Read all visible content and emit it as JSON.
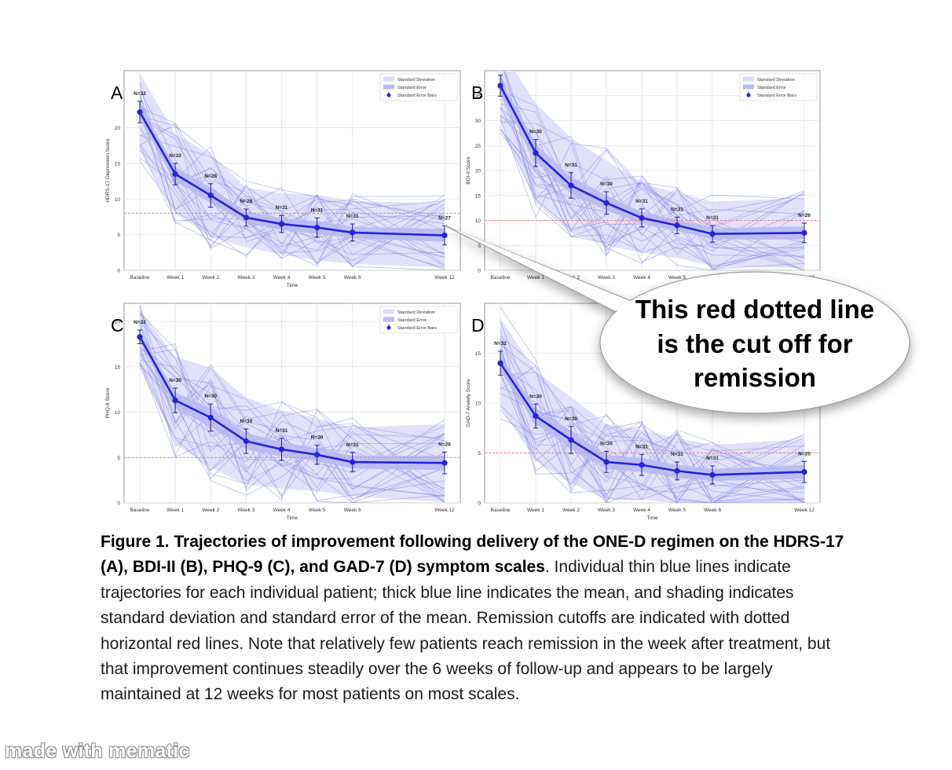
{
  "chart_data": [
    {
      "type": "line",
      "panel_label": "A",
      "ylabel": "HDRS-17 Depression Score",
      "xlabel": "Time",
      "x_ticks": [
        "Baseline",
        "Week 1",
        "Week 2",
        "Week 3",
        "Week 4",
        "Week 5",
        "Week 6",
        "Week 12"
      ],
      "ylim": [
        0,
        28
      ],
      "y_ticks": [
        0,
        5,
        10,
        15,
        20
      ],
      "grid": true,
      "legend": {
        "position": "top-right",
        "entries": [
          "Standard Deviation",
          "Standard Error",
          "Standard Error Bars"
        ]
      },
      "remission_cutoff": 8,
      "mean": [
        22.2,
        13.5,
        10.5,
        7.4,
        6.5,
        6.0,
        5.3,
        4.9
      ],
      "se": [
        1.0,
        1.0,
        1.1,
        0.8,
        0.8,
        0.9,
        0.8,
        0.9
      ],
      "sd": [
        5.5,
        5.6,
        5.8,
        4.2,
        4.3,
        4.6,
        4.4,
        4.5
      ],
      "n_labels": [
        "N=32",
        "N=32",
        "N=28",
        "N=28",
        "N=31",
        "N=31",
        "N=31",
        "N=27"
      ]
    },
    {
      "type": "line",
      "panel_label": "B",
      "ylabel": "BDI-II Score",
      "xlabel": "",
      "x_ticks": [
        "Baseline",
        "Week 1",
        "Week 2",
        "Week 3",
        "Week 4",
        "Week 5",
        "Week 6",
        "Week 12"
      ],
      "ylim": [
        0,
        40
      ],
      "y_ticks": [
        0,
        5,
        10,
        15,
        20,
        25,
        30,
        35
      ],
      "grid": true,
      "legend": {
        "position": "top-right",
        "entries": [
          "Standard Deviation",
          "Standard Error",
          "Standard Error Bars"
        ]
      },
      "remission_cutoff": 10,
      "mean": [
        37.0,
        23.5,
        17.0,
        13.5,
        10.5,
        9.0,
        7.3,
        7.5
      ],
      "se": [
        1.4,
        1.8,
        1.7,
        1.5,
        1.2,
        1.1,
        1.1,
        1.3
      ],
      "sd": [
        7.5,
        10.0,
        9.5,
        8.5,
        7.0,
        6.5,
        6.5,
        7.0
      ],
      "n_labels": [
        "N=32",
        "N=30",
        "N=31",
        "N=30",
        "N=31",
        "N=31",
        "N=31",
        "N=26"
      ]
    },
    {
      "type": "line",
      "panel_label": "C",
      "ylabel": "PHQ-9 Score",
      "xlabel": "Time",
      "x_ticks": [
        "Baseline",
        "Week 1",
        "Week 2",
        "Week 3",
        "Week 4",
        "Week 5",
        "Week 6",
        "Week 12"
      ],
      "ylim": [
        0,
        22
      ],
      "y_ticks": [
        0,
        5,
        10,
        15,
        20
      ],
      "grid": true,
      "legend": {
        "position": "top-right",
        "entries": [
          "Standard Deviation",
          "Standard Error",
          "Standard Error Bars"
        ]
      },
      "remission_cutoff": 5,
      "mean": [
        18.3,
        11.3,
        9.4,
        6.8,
        5.9,
        5.3,
        4.5,
        4.4
      ],
      "se": [
        0.5,
        0.9,
        1.0,
        0.9,
        0.8,
        0.7,
        0.7,
        0.8
      ],
      "sd": [
        3.0,
        4.8,
        5.5,
        4.8,
        4.3,
        4.0,
        3.8,
        4.3
      ],
      "n_labels": [
        "N=32",
        "N=30",
        "N=30",
        "N=30",
        "N=31",
        "N=30",
        "N=31",
        "N=26"
      ]
    },
    {
      "type": "line",
      "panel_label": "D",
      "ylabel": "GAD-7 Anxiety Score",
      "xlabel": "Time",
      "x_ticks": [
        "Baseline",
        "Week 1",
        "Week 2",
        "Week 3",
        "Week 4",
        "Week 5",
        "Week 6",
        "Week 12"
      ],
      "ylim": [
        0,
        20
      ],
      "y_ticks": [
        0,
        5,
        10,
        15
      ],
      "grid": true,
      "legend": {
        "position": "top-right",
        "entries": [
          "Standard Deviation",
          "Standard Error",
          "Standard Error Bars"
        ]
      },
      "remission_cutoff": 5,
      "mean": [
        14.0,
        8.7,
        6.3,
        4.1,
        3.8,
        3.2,
        2.8,
        3.1
      ],
      "se": [
        0.8,
        0.8,
        0.9,
        0.7,
        0.7,
        0.6,
        0.6,
        0.7
      ],
      "sd": [
        4.5,
        4.5,
        4.3,
        3.8,
        3.5,
        3.3,
        3.0,
        3.3
      ],
      "n_labels": [
        "N=32",
        "N=30",
        "N=30",
        "N=30",
        "N=31",
        "N=31",
        "N=31",
        "N=25"
      ]
    }
  ],
  "caption": {
    "title": "Figure 1. Trajectories of improvement following delivery of the ONE-D regimen on the HDRS-17 (A), BDI-II (B), PHQ-9 (C), and GAD-7 (D) symptom scales",
    "body": ". Individual thin blue lines indicate trajectories for each individual patient; thick blue line indicates the mean, and shading indicates standard deviation and standard error of the mean. Remission cutoffs are indicated with dotted horizontal red lines. Note that relatively few patients reach remission in the week after treatment, but that improvement continues steadily over the 6 weeks of follow-up and appears to be largely maintained at 12 weeks for most patients on most scales."
  },
  "annotation": {
    "text": "This red dotted line is the cut off for remission"
  },
  "watermark": "made with mematic",
  "colors": {
    "mean_line": "#2424d6",
    "individual_lines": "#8c8ce6",
    "sd_band": "#dcdcfa",
    "se_band": "#b9b9f2",
    "cutoff": "#f08080"
  }
}
